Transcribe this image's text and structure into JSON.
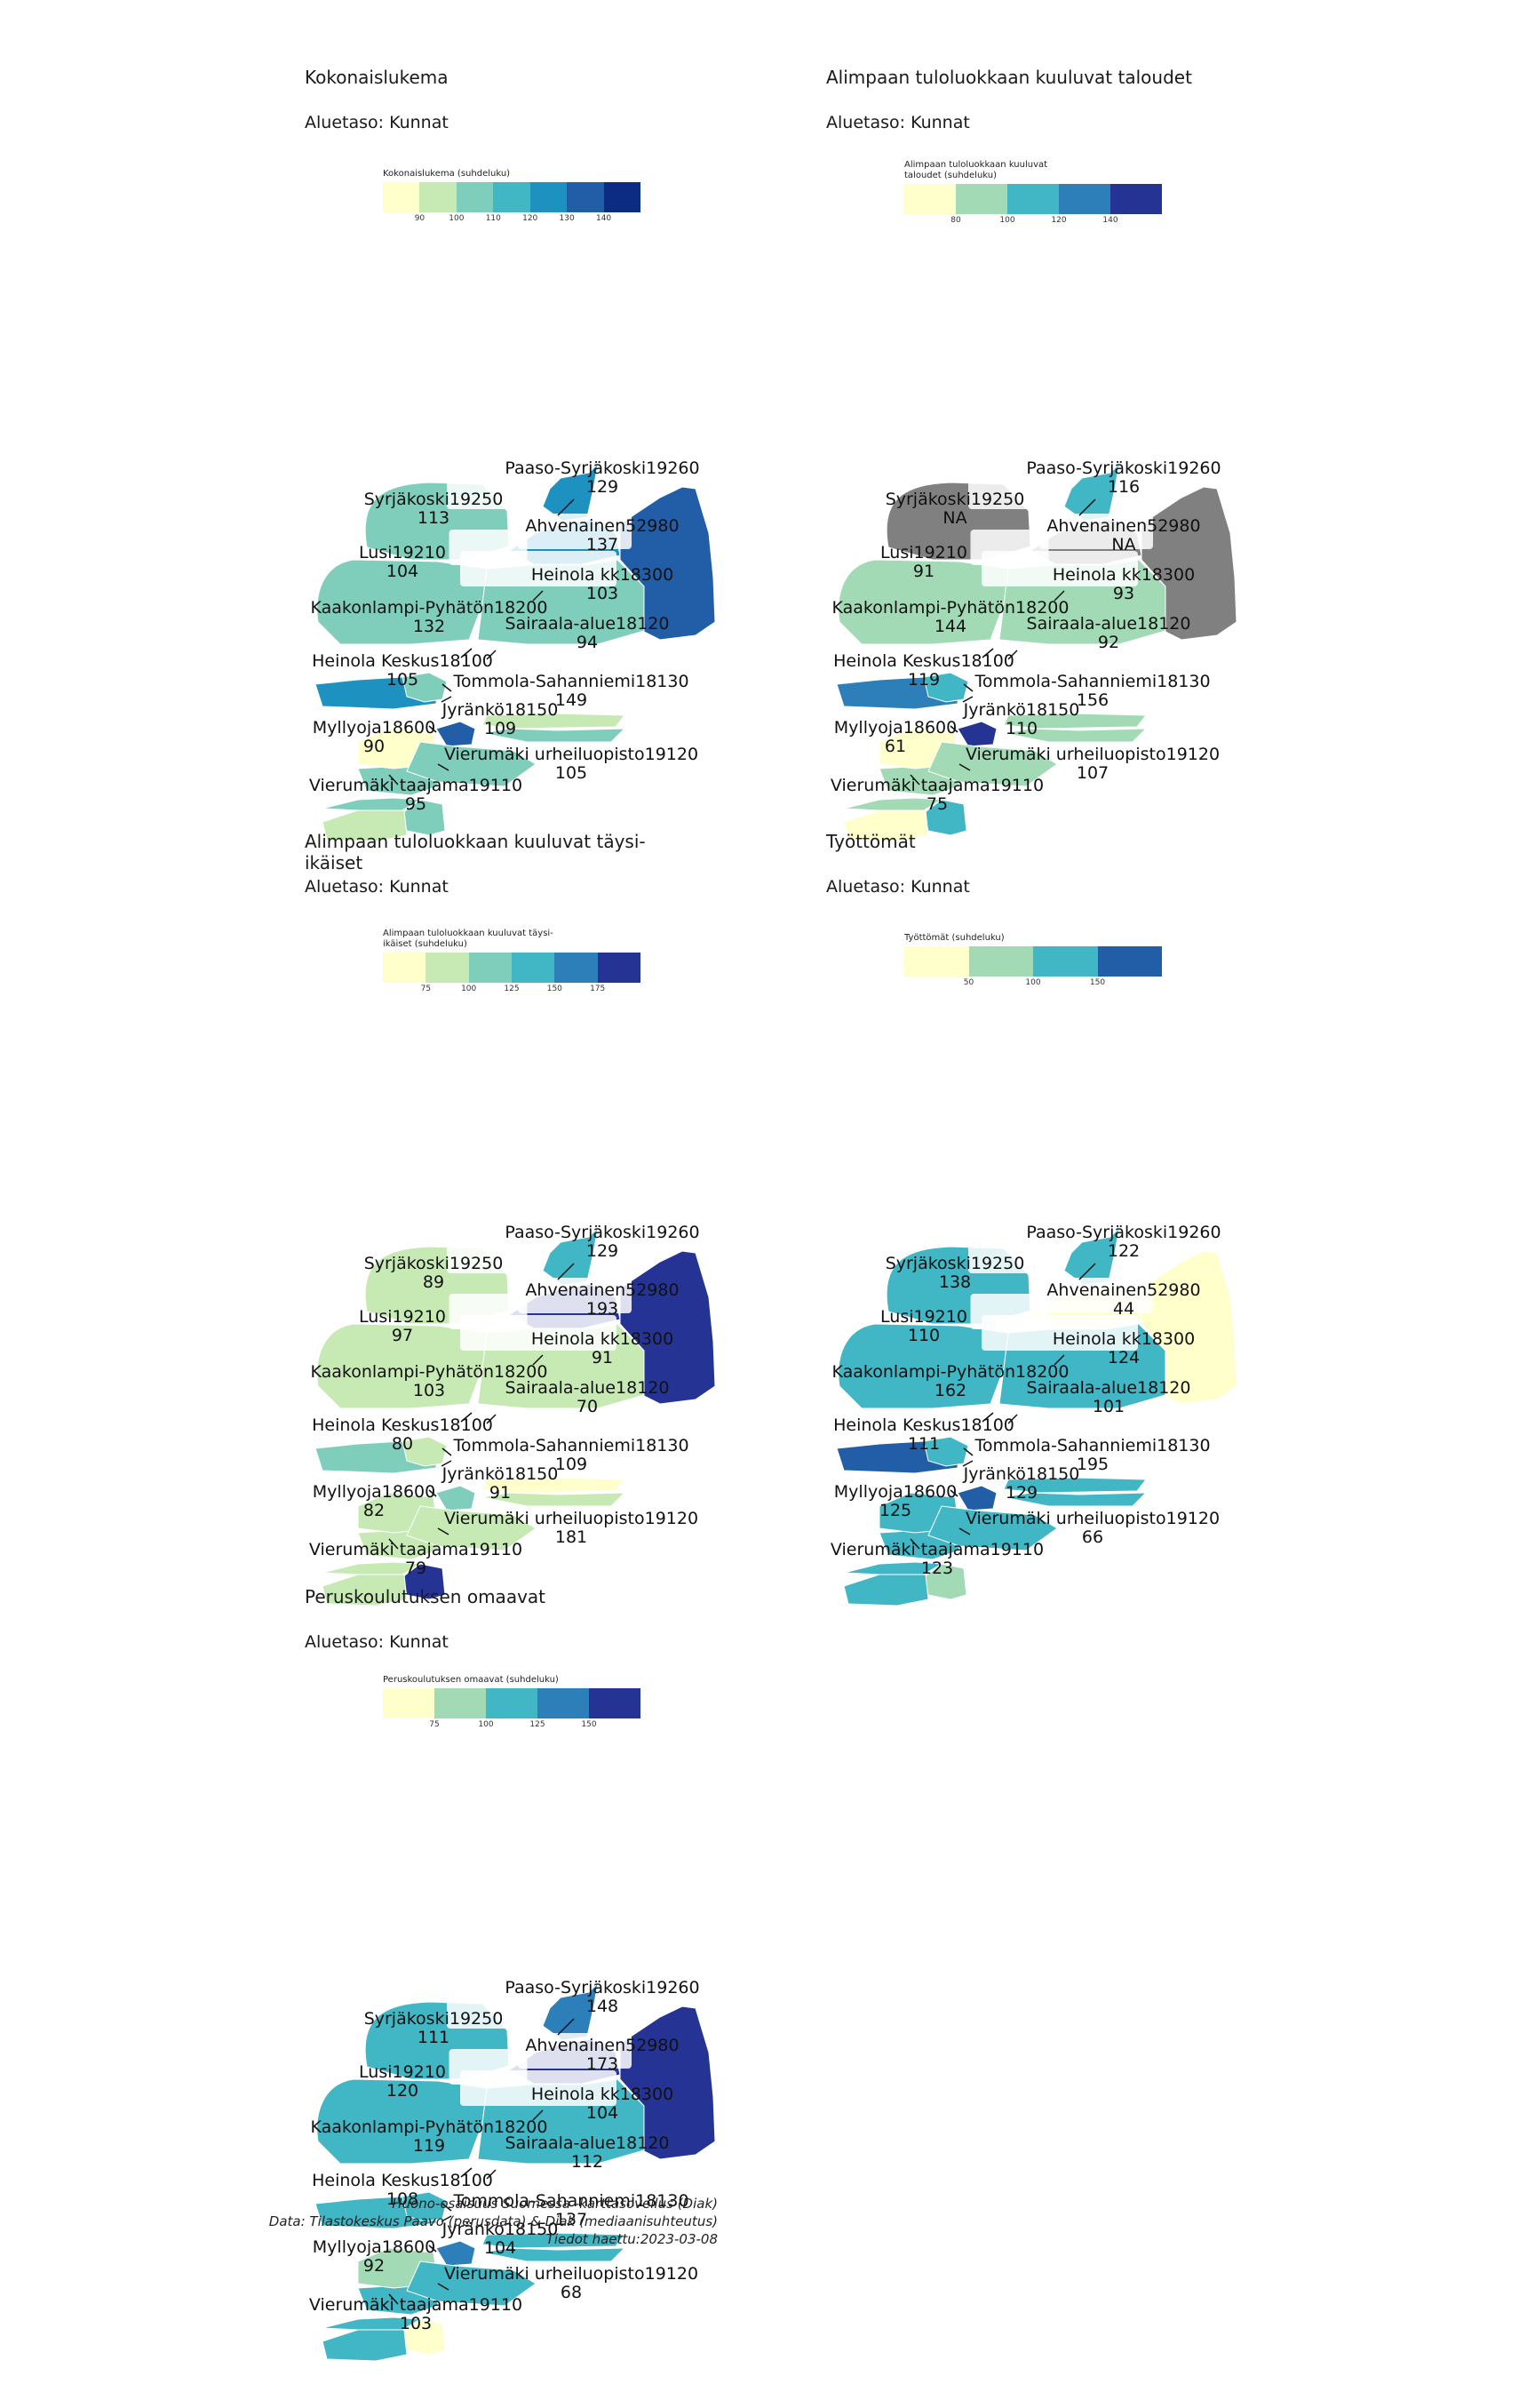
{
  "subtitle": "Aluetaso: Kunnat",
  "caption": {
    "line1": "Huono-osaisuus Suomessa -karttasovellus (Diak)",
    "line2": "Data: Tilastokeskus Paavo (perusdata) & Diak (mediaanisuhteutus)",
    "line3": "Tiedot haettu:2023-03-08"
  },
  "area_names": [
    "Syrjäkoski19250",
    "Paaso-Syrjäkoski19260",
    "Ahvenainen52980",
    "Lusi19210",
    "Heinola kk18300",
    "Kaakonlampi-Pyhätön18200",
    "Sairaala-alue18120",
    "Heinola Keskus18100",
    "Tommola-Sahanniemi18130",
    "Myllyoja18600",
    "Jyränkö18150",
    "Vierumäki urheiluopisto19120",
    "Vierumäki taajama19110"
  ],
  "panels": [
    {
      "title": "Kokonaislukema",
      "legend": {
        "title": "Kokonaislukema (suhdeluku)",
        "colors": [
          "#ffffcc",
          "#c7e9b4",
          "#7fcdbb",
          "#41b6c4",
          "#1d91c0",
          "#225ea8",
          "#0c2c84"
        ],
        "ticks": [
          "90",
          "100",
          "110",
          "120",
          "130",
          "140"
        ]
      },
      "values": [
        "113",
        "129",
        "137",
        "104",
        "103",
        "132",
        "94",
        "105",
        "149",
        "90",
        "109",
        "105",
        "95"
      ],
      "fills": [
        "#7fcdbb",
        "#1d91c0",
        "#1d91c0",
        "#7fcdbb",
        "#7fcdbb",
        "#1d91c0",
        "#c7e9b4",
        "#7fcdbb",
        "#225ea8",
        "#ffffcc",
        "#7fcdbb",
        "#7fcdbb",
        "#c7e9b4"
      ],
      "east_fill": "#225ea8"
    },
    {
      "title": "Alimpaan tuloluokkaan kuuluvat taloudet",
      "legend": {
        "title": "Alimpaan tuloluokkaan kuuluvat taloudet (suhdeluku)",
        "colors": [
          "#ffffcc",
          "#a1dab4",
          "#41b6c4",
          "#2c7fb8",
          "#253494"
        ],
        "ticks": [
          "80",
          "100",
          "120",
          "140"
        ]
      },
      "values": [
        "NA",
        "116",
        "NA",
        "91",
        "93",
        "144",
        "92",
        "119",
        "156",
        "61",
        "110",
        "107",
        "75"
      ],
      "fills": [
        "#808080",
        "#41b6c4",
        "#808080",
        "#a1dab4",
        "#a1dab4",
        "#2c7fb8",
        "#a1dab4",
        "#41b6c4",
        "#253494",
        "#ffffcc",
        "#a1dab4",
        "#41b6c4",
        "#ffffcc"
      ],
      "east_fill": "#808080"
    },
    {
      "title": "Alimpaan tuloluokkaan kuuluvat täysi-ikäiset",
      "legend": {
        "title": "Alimpaan tuloluokkaan kuuluvat täysi-ikäiset (suhdeluku)",
        "colors": [
          "#ffffcc",
          "#c7e9b4",
          "#7fcdbb",
          "#41b6c4",
          "#2c7fb8",
          "#253494"
        ],
        "ticks": [
          "75",
          "100",
          "125",
          "150",
          "175"
        ]
      },
      "values": [
        "89",
        "129",
        "193",
        "97",
        "91",
        "103",
        "70",
        "80",
        "109",
        "82",
        "91",
        "181",
        "79"
      ],
      "fills": [
        "#c7e9b4",
        "#41b6c4",
        "#253494",
        "#c7e9b4",
        "#c7e9b4",
        "#7fcdbb",
        "#ffffcc",
        "#c7e9b4",
        "#7fcdbb",
        "#c7e9b4",
        "#c7e9b4",
        "#253494",
        "#c7e9b4"
      ],
      "east_fill": "#253494"
    },
    {
      "title": "Työttömät",
      "legend": {
        "title": "Työttömät (suhdeluku)",
        "colors": [
          "#ffffcc",
          "#a1dab4",
          "#41b6c4",
          "#225ea8"
        ],
        "ticks": [
          "50",
          "100",
          "150"
        ]
      },
      "values": [
        "138",
        "122",
        "44",
        "110",
        "124",
        "162",
        "101",
        "111",
        "195",
        "125",
        "129",
        "66",
        "123"
      ],
      "fills": [
        "#41b6c4",
        "#41b6c4",
        "#ffffcc",
        "#41b6c4",
        "#41b6c4",
        "#225ea8",
        "#41b6c4",
        "#41b6c4",
        "#225ea8",
        "#41b6c4",
        "#41b6c4",
        "#a1dab4",
        "#41b6c4"
      ],
      "east_fill": "#ffffcc"
    },
    {
      "title": "Peruskoulutuksen omaavat",
      "legend": {
        "title": "Peruskoulutuksen omaavat (suhdeluku)",
        "colors": [
          "#ffffcc",
          "#a1dab4",
          "#41b6c4",
          "#2c7fb8",
          "#253494"
        ],
        "ticks": [
          "75",
          "100",
          "125",
          "150"
        ]
      },
      "values": [
        "111",
        "148",
        "173",
        "120",
        "104",
        "119",
        "112",
        "108",
        "137",
        "92",
        "104",
        "68",
        "103"
      ],
      "fills": [
        "#41b6c4",
        "#2c7fb8",
        "#253494",
        "#41b6c4",
        "#41b6c4",
        "#41b6c4",
        "#41b6c4",
        "#41b6c4",
        "#2c7fb8",
        "#a1dab4",
        "#41b6c4",
        "#ffffcc",
        "#41b6c4"
      ],
      "east_fill": "#253494"
    }
  ]
}
